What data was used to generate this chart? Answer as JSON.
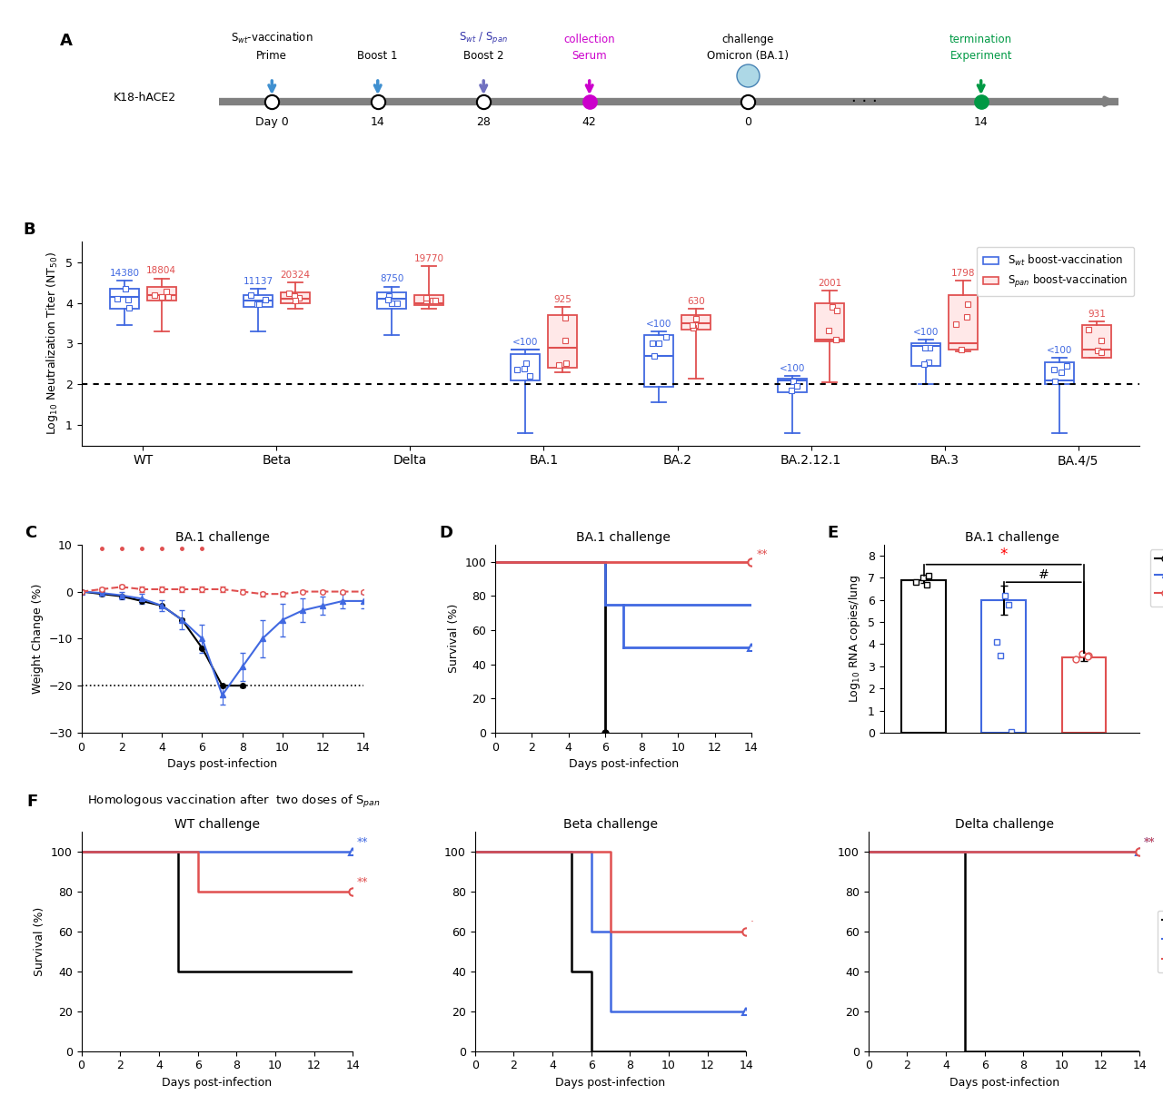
{
  "panel_B": {
    "categories": [
      "WT",
      "Beta",
      "Delta",
      "BA.1",
      "BA.2",
      "BA.2.12.1",
      "BA.3",
      "BA.4/5"
    ],
    "blue_medians": [
      4.15,
      4.05,
      4.1,
      2.85,
      2.7,
      2.1,
      2.95,
      2.1
    ],
    "blue_q1": [
      3.85,
      3.9,
      3.85,
      2.1,
      1.95,
      1.8,
      2.45,
      2.0
    ],
    "blue_q3": [
      4.35,
      4.2,
      4.25,
      2.75,
      3.2,
      2.15,
      3.0,
      2.55
    ],
    "blue_whislo": [
      3.45,
      3.3,
      3.2,
      0.8,
      1.55,
      0.8,
      2.0,
      0.8
    ],
    "blue_whishi": [
      4.55,
      4.35,
      4.4,
      2.85,
      3.3,
      2.2,
      3.1,
      2.65
    ],
    "red_medians": [
      4.2,
      4.1,
      4.0,
      2.9,
      3.5,
      3.1,
      3.0,
      2.85
    ],
    "red_q1": [
      4.05,
      4.0,
      3.95,
      2.4,
      3.35,
      3.05,
      2.85,
      2.65
    ],
    "red_q3": [
      4.4,
      4.25,
      4.2,
      3.7,
      3.7,
      4.0,
      4.2,
      3.45
    ],
    "red_whislo": [
      3.3,
      3.85,
      3.85,
      2.3,
      2.15,
      2.05,
      2.8,
      2.65
    ],
    "red_whishi": [
      4.6,
      4.5,
      4.9,
      3.9,
      3.85,
      4.3,
      4.55,
      3.55
    ],
    "blue_labels": [
      "14380",
      "11137",
      "8750",
      "<100",
      "<100",
      "<100",
      "<100",
      "<100"
    ],
    "red_labels": [
      "18804",
      "20324",
      "19770",
      "925",
      "630",
      "2001",
      "1798",
      "931"
    ],
    "blue_color": "#4169E1",
    "red_color": "#E05050"
  },
  "colors": {
    "blue": "#3060C0",
    "red": "#E05050",
    "magenta": "#CC00CC",
    "green": "#009944"
  }
}
